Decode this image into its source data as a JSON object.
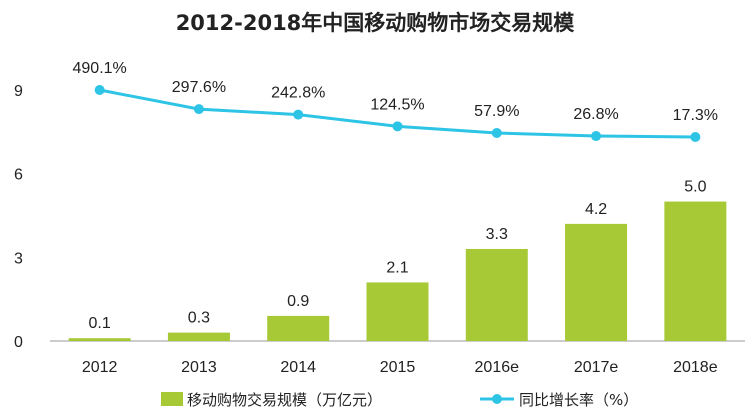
{
  "chart_data": {
    "type": "bar+line",
    "title": "2012-2018年中国移动购物市场交易规模",
    "categories": [
      "2012",
      "2013",
      "2014",
      "2015",
      "2016e",
      "2017e",
      "2018e"
    ],
    "series": [
      {
        "name": "移动购物交易规模（万亿元）",
        "type": "bar",
        "values": [
          0.1,
          0.3,
          0.9,
          2.1,
          3.3,
          4.2,
          5.0
        ],
        "labels": [
          "0.1",
          "0.3",
          "0.9",
          "2.1",
          "3.3",
          "4.2",
          "5.0"
        ]
      },
      {
        "name": "同比增长率（%）",
        "type": "line",
        "values": [
          490.1,
          297.6,
          242.8,
          124.5,
          57.9,
          26.8,
          17.3
        ],
        "labels": [
          "490.1%",
          "297.6%",
          "242.8%",
          "124.5%",
          "57.9%",
          "26.8%",
          "17.3%"
        ]
      }
    ],
    "y_axis": {
      "ticks": [
        "0",
        "3",
        "6",
        "9"
      ],
      "ylim": [
        0,
        9
      ]
    },
    "legend": {
      "position": "bottom"
    },
    "grid": false,
    "colors": {
      "bar": "#a6c935",
      "line": "#2ec4e6",
      "axis": "#999999",
      "text": "#222222"
    }
  }
}
